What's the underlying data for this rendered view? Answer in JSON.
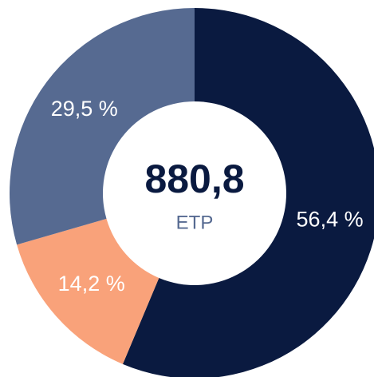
{
  "chart_data": {
    "type": "donut",
    "categories": [
      null,
      null,
      null
    ],
    "values": [
      56.4,
      14.2,
      29.5
    ],
    "value_labels": [
      "56,4 %",
      "14,2 %",
      "29,5 %"
    ],
    "colors": [
      "#0a1a40",
      "#f9a27a",
      "#566a91"
    ],
    "center_label": "880,8",
    "center_sublabel": "ETP"
  }
}
